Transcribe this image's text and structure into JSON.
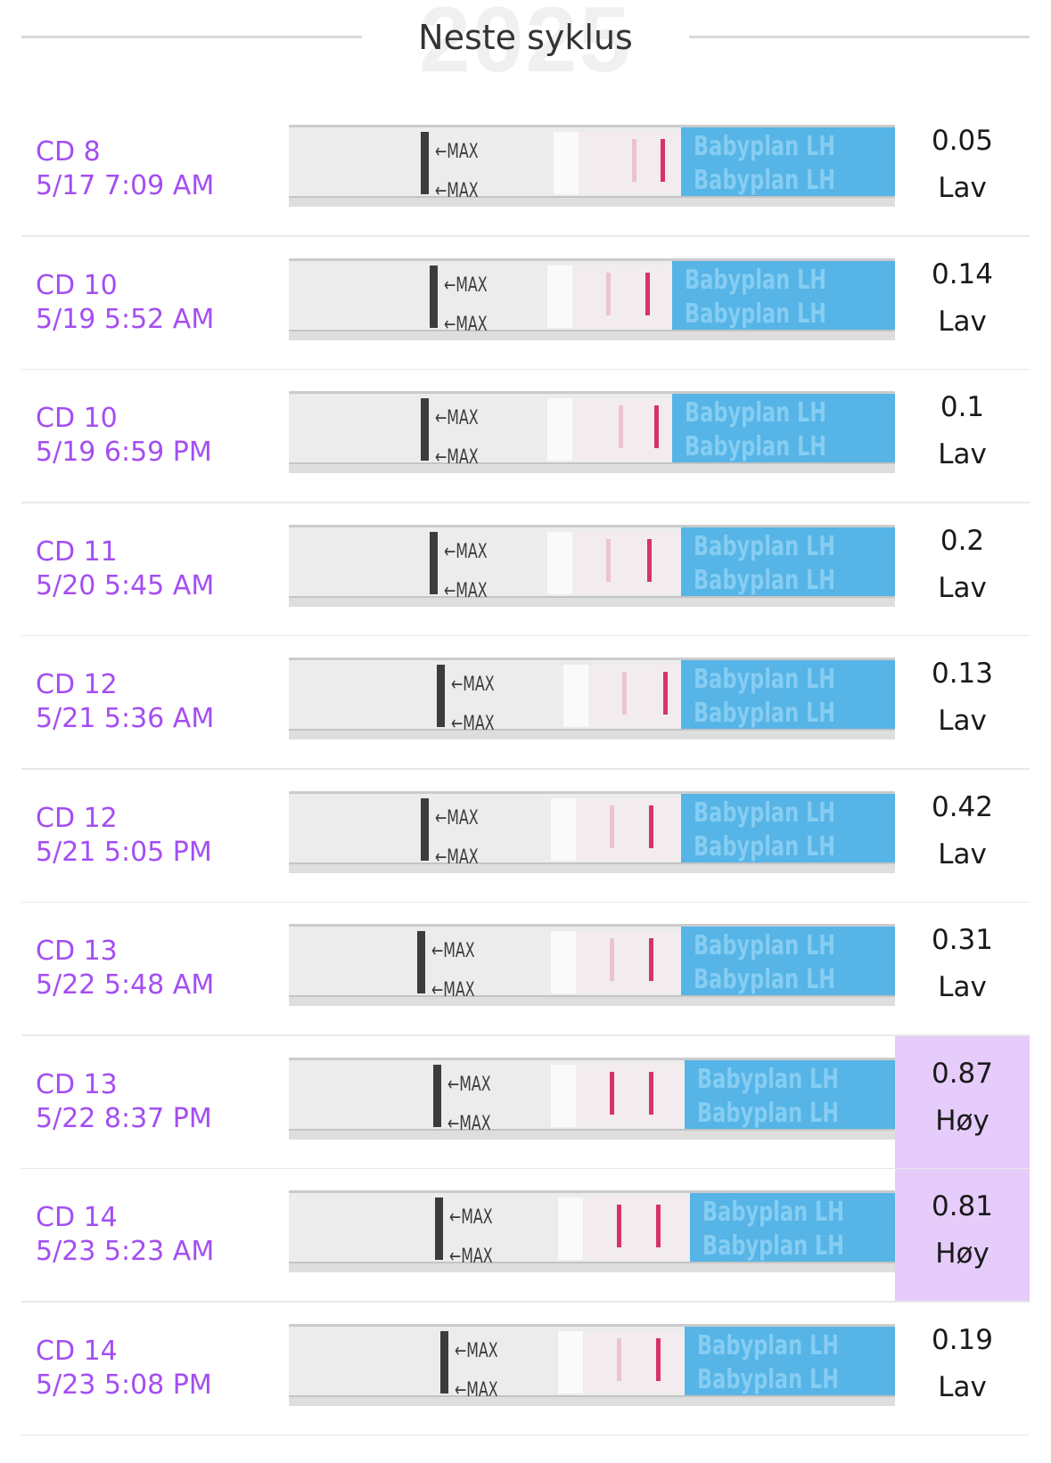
{
  "header": {
    "title": "Neste syklus",
    "watermark_year": "2025"
  },
  "colors": {
    "accent_purple": "#a44ef2",
    "high_highlight": "#e6ccfa",
    "test_line": "#d6336c",
    "strip_label_blue": "#56b4e6"
  },
  "strip_text": {
    "max_label": "←MAX",
    "brand_label": "Babyplan LH"
  },
  "tests": [
    {
      "cycle_day": "CD 8",
      "datetime": "5/17 7:09 AM",
      "value": "0.05",
      "level": "Lav",
      "high": false,
      "test_line_strength": "faint"
    },
    {
      "cycle_day": "CD 10",
      "datetime": "5/19 5:52 AM",
      "value": "0.14",
      "level": "Lav",
      "high": false,
      "test_line_strength": "faint"
    },
    {
      "cycle_day": "CD 10",
      "datetime": "5/19 6:59 PM",
      "value": "0.1",
      "level": "Lav",
      "high": false,
      "test_line_strength": "faint"
    },
    {
      "cycle_day": "CD 11",
      "datetime": "5/20 5:45 AM",
      "value": "0.2",
      "level": "Lav",
      "high": false,
      "test_line_strength": "faint"
    },
    {
      "cycle_day": "CD 12",
      "datetime": "5/21 5:36 AM",
      "value": "0.13",
      "level": "Lav",
      "high": false,
      "test_line_strength": "faint"
    },
    {
      "cycle_day": "CD 12",
      "datetime": "5/21 5:05 PM",
      "value": "0.42",
      "level": "Lav",
      "high": false,
      "test_line_strength": "faint"
    },
    {
      "cycle_day": "CD 13",
      "datetime": "5/22 5:48 AM",
      "value": "0.31",
      "level": "Lav",
      "high": false,
      "test_line_strength": "faint"
    },
    {
      "cycle_day": "CD 13",
      "datetime": "5/22 8:37 PM",
      "value": "0.87",
      "level": "Høy",
      "high": true,
      "test_line_strength": "strong"
    },
    {
      "cycle_day": "CD 14",
      "datetime": "5/23 5:23 AM",
      "value": "0.81",
      "level": "Høy",
      "high": true,
      "test_line_strength": "strong"
    },
    {
      "cycle_day": "CD 14",
      "datetime": "5/23 5:08 PM",
      "value": "0.19",
      "level": "Lav",
      "high": false,
      "test_line_strength": "faint"
    }
  ]
}
